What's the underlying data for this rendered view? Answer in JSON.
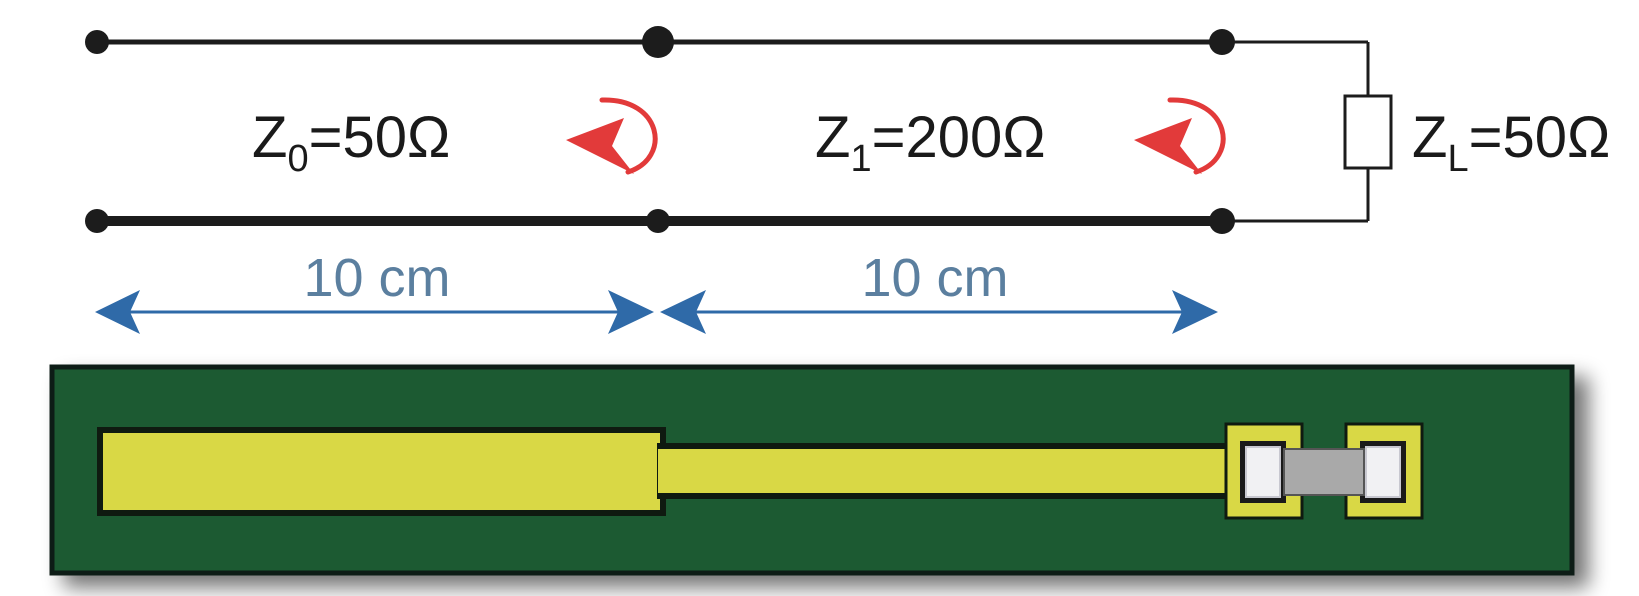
{
  "sections": [
    {
      "impedance_label": "Z",
      "impedance_subscript": "0",
      "impedance_value": "=50Ω",
      "length": "10 cm"
    },
    {
      "impedance_label": "Z",
      "impedance_subscript": "1",
      "impedance_value": "=200Ω",
      "length": "10 cm"
    }
  ],
  "load": {
    "impedance_label": "Z",
    "impedance_subscript": "L",
    "impedance_value": "=50Ω"
  },
  "colors": {
    "wire": "#1c1c1c",
    "reflection_arrow": "#e23a3a",
    "dimension_arrow": "#2f6aa8",
    "pcb_board": "#1f5a33",
    "trace": "#d9d845",
    "pad_plating": "#d9d845",
    "resistor_body": "#a9a9a9"
  }
}
